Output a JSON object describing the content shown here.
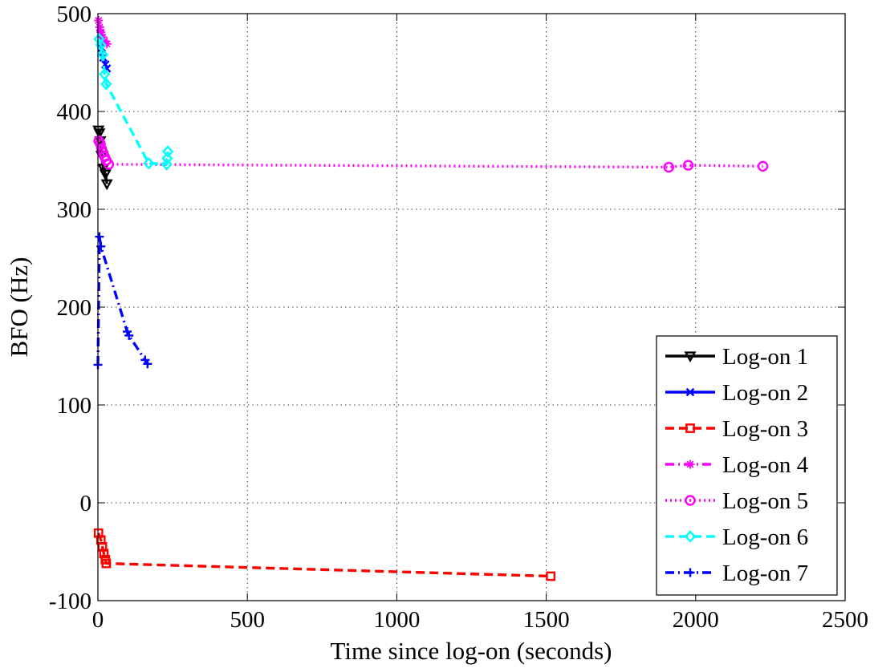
{
  "chart_data": {
    "type": "line",
    "title": "",
    "xlabel": "Time since log-on (seconds)",
    "ylabel": "BFO (Hz)",
    "xlim": [
      0,
      2500
    ],
    "ylim": [
      -100,
      500
    ],
    "xticks": [
      0,
      500,
      1000,
      1500,
      2000,
      2500
    ],
    "yticks": [
      -100,
      0,
      100,
      200,
      300,
      400,
      500
    ],
    "xtick_labels": [
      "0",
      "500",
      "1000",
      "1500",
      "2000",
      "2500"
    ],
    "ytick_labels": [
      "-100",
      "0",
      "100",
      "200",
      "300",
      "400",
      "500"
    ],
    "grid": true,
    "legend_position": "bottom-right",
    "series": [
      {
        "name": "Log-on 1",
        "color": "#000000",
        "dash": "solid",
        "marker": "triangle-down",
        "x": [
          2,
          5,
          8,
          12,
          18,
          25,
          30
        ],
        "y": [
          381,
          378,
          370,
          355,
          342,
          336,
          326
        ]
      },
      {
        "name": "Log-on 2",
        "color": "#0000ff",
        "dash": "solid",
        "marker": "x",
        "x": [
          8,
          13,
          18,
          25,
          30
        ],
        "y": [
          480,
          465,
          455,
          448,
          444
        ]
      },
      {
        "name": "Log-on 3",
        "color": "#ff0000",
        "dash": "dashed",
        "marker": "square",
        "x": [
          2,
          10,
          15,
          20,
          25,
          28,
          1515
        ],
        "y": [
          -31,
          -38,
          -45,
          -52,
          -58,
          -62,
          -75
        ]
      },
      {
        "name": "Log-on 4",
        "color": "#ff00ff",
        "dash": "dashdot",
        "marker": "star",
        "x": [
          2,
          6,
          10,
          16,
          22,
          30
        ],
        "y": [
          493,
          486,
          481,
          476,
          472,
          469
        ]
      },
      {
        "name": "Log-on 5",
        "color": "#ff00ff",
        "dash": "dotted",
        "marker": "circle",
        "x": [
          3,
          8,
          12,
          17,
          22,
          28,
          36,
          1910,
          1975,
          2225
        ],
        "y": [
          370,
          367,
          362,
          358,
          354,
          350,
          346,
          343,
          345,
          344
        ]
      },
      {
        "name": "Log-on 6",
        "color": "#00ffff",
        "dash": "dashed",
        "marker": "diamond",
        "x": [
          4,
          10,
          16,
          22,
          28,
          170,
          230,
          232,
          234
        ],
        "y": [
          474,
          468,
          458,
          438,
          428,
          347,
          346,
          352,
          359
        ]
      },
      {
        "name": "Log-on 7",
        "color": "#0000ff",
        "dash": "dashdot",
        "marker": "plus",
        "x": [
          0,
          5,
          10,
          98,
          104,
          158,
          166
        ],
        "y": [
          141,
          272,
          262,
          175,
          171,
          146,
          142
        ]
      }
    ]
  }
}
